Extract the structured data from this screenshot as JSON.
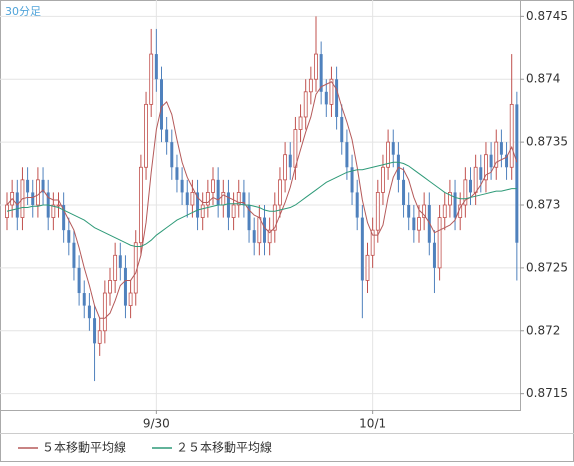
{
  "chart_data": {
    "type": "candlestick",
    "title": "30分足",
    "categories": [
      null,
      null,
      null,
      null,
      null,
      null,
      null,
      null,
      null,
      null,
      null,
      null,
      null,
      null,
      null,
      null,
      null,
      null,
      null,
      null,
      null,
      null,
      null,
      null,
      null,
      null,
      null,
      null,
      null,
      "9/30",
      null,
      null,
      null,
      null,
      null,
      null,
      null,
      null,
      null,
      null,
      null,
      null,
      null,
      null,
      null,
      null,
      null,
      null,
      null,
      null,
      null,
      null,
      null,
      null,
      null,
      null,
      null,
      null,
      null,
      null,
      null,
      null,
      null,
      null,
      null,
      null,
      null,
      null,
      null,
      null,
      null,
      "10/1",
      null,
      null,
      null,
      null,
      null,
      null,
      null,
      null,
      null,
      null,
      null,
      null,
      null,
      null,
      null,
      null,
      null,
      null,
      null,
      null,
      null,
      null,
      null,
      null,
      null,
      null,
      null,
      null
    ],
    "candles": {
      "open": [
        0.8729,
        0.873,
        0.8731,
        0.8729,
        0.8732,
        0.8731,
        0.873,
        0.8732,
        0.8731,
        0.8729,
        0.873,
        0.873,
        0.8728,
        0.8727,
        0.8725,
        0.8723,
        0.8722,
        0.8721,
        0.8719,
        0.872,
        0.8723,
        0.8724,
        0.8726,
        0.8725,
        0.8722,
        0.8723,
        0.8727,
        0.8733,
        0.8738,
        0.8742,
        0.874,
        0.8736,
        0.8735,
        0.8733,
        0.8732,
        0.8731,
        0.873,
        0.8731,
        0.8729,
        0.873,
        0.8731,
        0.8732,
        0.873,
        0.8731,
        0.8729,
        0.873,
        0.8731,
        0.873,
        0.8728,
        0.8727,
        0.8729,
        0.8727,
        0.8728,
        0.873,
        0.8732,
        0.8734,
        0.8733,
        0.8736,
        0.8737,
        0.8739,
        0.874,
        0.8742,
        0.8739,
        0.8738,
        0.874,
        0.8737,
        0.8735,
        0.8733,
        0.8731,
        0.8729,
        0.8724,
        0.8726,
        0.8728,
        0.8731,
        0.8733,
        0.8735,
        0.8734,
        0.8732,
        0.873,
        0.8729,
        0.8728,
        0.8729,
        0.873,
        0.8727,
        0.8725,
        0.8729,
        0.873,
        0.8731,
        0.8729,
        0.873,
        0.8732,
        0.8731,
        0.8733,
        0.8732,
        0.8734,
        0.8733,
        0.8735,
        0.8734,
        0.8733,
        0.8738
      ],
      "high": [
        0.8731,
        0.8732,
        0.8732,
        0.8733,
        0.8733,
        0.8732,
        0.8733,
        0.8733,
        0.8732,
        0.8731,
        0.8731,
        0.8731,
        0.8729,
        0.8728,
        0.8726,
        0.8724,
        0.8723,
        0.8722,
        0.8721,
        0.8724,
        0.8725,
        0.8727,
        0.8727,
        0.8726,
        0.8724,
        0.8728,
        0.8734,
        0.8739,
        0.8744,
        0.8744,
        0.8741,
        0.8737,
        0.8736,
        0.8734,
        0.8733,
        0.8732,
        0.8732,
        0.8732,
        0.8731,
        0.8732,
        0.8733,
        0.8733,
        0.8732,
        0.8732,
        0.8731,
        0.8732,
        0.8732,
        0.8731,
        0.8729,
        0.873,
        0.873,
        0.8729,
        0.8731,
        0.8733,
        0.8735,
        0.8735,
        0.8737,
        0.8738,
        0.874,
        0.8741,
        0.8745,
        0.8743,
        0.874,
        0.8741,
        0.8741,
        0.8738,
        0.8736,
        0.8734,
        0.8732,
        0.873,
        0.8727,
        0.8729,
        0.8732,
        0.8734,
        0.8736,
        0.8736,
        0.8735,
        0.8733,
        0.8731,
        0.873,
        0.873,
        0.8731,
        0.8731,
        0.8728,
        0.873,
        0.8731,
        0.8732,
        0.8732,
        0.8731,
        0.8733,
        0.8733,
        0.8734,
        0.8734,
        0.8735,
        0.8735,
        0.8736,
        0.8736,
        0.8735,
        0.8742,
        0.8739
      ],
      "low": [
        0.8728,
        0.8729,
        0.8728,
        0.8728,
        0.873,
        0.8729,
        0.8729,
        0.873,
        0.8728,
        0.8728,
        0.8729,
        0.8727,
        0.8726,
        0.8724,
        0.8722,
        0.8721,
        0.872,
        0.8716,
        0.8718,
        0.8719,
        0.8722,
        0.8723,
        0.8724,
        0.8721,
        0.8721,
        0.8722,
        0.8726,
        0.8732,
        0.8737,
        0.8739,
        0.8735,
        0.8734,
        0.8732,
        0.8731,
        0.873,
        0.8729,
        0.8729,
        0.8728,
        0.8728,
        0.8729,
        0.873,
        0.8729,
        0.8729,
        0.8728,
        0.8728,
        0.8729,
        0.8729,
        0.8727,
        0.8726,
        0.8726,
        0.8726,
        0.8726,
        0.8727,
        0.8729,
        0.8731,
        0.8732,
        0.8732,
        0.8735,
        0.8736,
        0.8738,
        0.8739,
        0.8738,
        0.8737,
        0.8737,
        0.8736,
        0.8734,
        0.8732,
        0.873,
        0.8728,
        0.8721,
        0.8723,
        0.8725,
        0.8727,
        0.873,
        0.8732,
        0.8733,
        0.8731,
        0.8729,
        0.8728,
        0.8727,
        0.8727,
        0.8728,
        0.8726,
        0.8723,
        0.8724,
        0.8728,
        0.8729,
        0.8728,
        0.8728,
        0.8729,
        0.873,
        0.873,
        0.8731,
        0.8731,
        0.8732,
        0.8732,
        0.8733,
        0.8732,
        0.8732,
        0.8724
      ],
      "close": [
        0.873,
        0.8731,
        0.8729,
        0.8732,
        0.8731,
        0.873,
        0.8732,
        0.8731,
        0.8729,
        0.873,
        0.873,
        0.8728,
        0.8727,
        0.8725,
        0.8723,
        0.8722,
        0.8721,
        0.8719,
        0.872,
        0.8723,
        0.8724,
        0.8726,
        0.8725,
        0.8722,
        0.8723,
        0.8727,
        0.8733,
        0.8738,
        0.8742,
        0.874,
        0.8736,
        0.8735,
        0.8733,
        0.8732,
        0.8731,
        0.873,
        0.8731,
        0.8729,
        0.873,
        0.8731,
        0.8732,
        0.873,
        0.8731,
        0.8729,
        0.873,
        0.8731,
        0.873,
        0.8728,
        0.8727,
        0.8729,
        0.8727,
        0.8728,
        0.873,
        0.8732,
        0.8734,
        0.8733,
        0.8736,
        0.8737,
        0.8739,
        0.874,
        0.8742,
        0.8739,
        0.8738,
        0.874,
        0.8737,
        0.8735,
        0.8733,
        0.8731,
        0.8729,
        0.8724,
        0.8726,
        0.8728,
        0.8731,
        0.8733,
        0.8735,
        0.8734,
        0.8732,
        0.873,
        0.8729,
        0.8728,
        0.8729,
        0.873,
        0.8727,
        0.8725,
        0.8729,
        0.873,
        0.8731,
        0.8729,
        0.873,
        0.8732,
        0.8731,
        0.8733,
        0.8732,
        0.8734,
        0.8733,
        0.8735,
        0.8734,
        0.8733,
        0.8738,
        0.8727
      ]
    },
    "up_color": "#c0504d",
    "down_color": "#4f81bd",
    "series": [
      {
        "name": "５本移動平均線",
        "color": "#b55a5a",
        "values": [
          0.873,
          0.87305,
          0.873,
          0.87305,
          0.87306,
          0.87306,
          0.87308,
          0.87312,
          0.87306,
          0.87304,
          0.87304,
          0.87296,
          0.87288,
          0.8728,
          0.87266,
          0.8725,
          0.87236,
          0.8722,
          0.8721,
          0.8721,
          0.87214,
          0.87224,
          0.87236,
          0.8724,
          0.8724,
          0.87246,
          0.8726,
          0.87286,
          0.87326,
          0.8736,
          0.87378,
          0.87382,
          0.87372,
          0.87352,
          0.87334,
          0.87322,
          0.87314,
          0.87306,
          0.87302,
          0.87302,
          0.87306,
          0.87304,
          0.87308,
          0.87306,
          0.87304,
          0.87302,
          0.87302,
          0.87296,
          0.87292,
          0.8729,
          0.87282,
          0.87278,
          0.87282,
          0.87292,
          0.87302,
          0.87314,
          0.8733,
          0.87344,
          0.87358,
          0.8737,
          0.87388,
          0.87394,
          0.87396,
          0.87398,
          0.87392,
          0.87378,
          0.87366,
          0.87352,
          0.8733,
          0.87304,
          0.87286,
          0.87276,
          0.87276,
          0.87284,
          0.87306,
          0.87322,
          0.8733,
          0.87328,
          0.8732,
          0.87306,
          0.87296,
          0.87292,
          0.87286,
          0.87278,
          0.8728,
          0.87282,
          0.87284,
          0.87288,
          0.87298,
          0.87304,
          0.87306,
          0.8731,
          0.87316,
          0.87324,
          0.87326,
          0.87334,
          0.87336,
          0.87338,
          0.87346,
          0.87334
        ]
      },
      {
        "name": "２５本移動平均線",
        "color": "#2e9a78",
        "values": [
          0.87295,
          0.87296,
          0.87297,
          0.87298,
          0.87298,
          0.87299,
          0.87299,
          0.873,
          0.873,
          0.87299,
          0.87298,
          0.87296,
          0.87294,
          0.87292,
          0.8729,
          0.87288,
          0.87285,
          0.87282,
          0.8728,
          0.87278,
          0.87276,
          0.87274,
          0.87272,
          0.8727,
          0.87268,
          0.87267,
          0.87267,
          0.87269,
          0.87272,
          0.87276,
          0.87279,
          0.87282,
          0.87285,
          0.87288,
          0.8729,
          0.87292,
          0.87294,
          0.87296,
          0.87297,
          0.87298,
          0.87299,
          0.873,
          0.873,
          0.87301,
          0.87301,
          0.87301,
          0.873,
          0.873,
          0.87299,
          0.87298,
          0.87296,
          0.87295,
          0.87295,
          0.87296,
          0.87297,
          0.87298,
          0.873,
          0.87303,
          0.87306,
          0.87309,
          0.87312,
          0.87315,
          0.87318,
          0.8732,
          0.87322,
          0.87324,
          0.87326,
          0.87327,
          0.87328,
          0.87328,
          0.87329,
          0.8733,
          0.87331,
          0.87332,
          0.87333,
          0.87334,
          0.87334,
          0.87333,
          0.87331,
          0.87328,
          0.87325,
          0.87322,
          0.87319,
          0.87316,
          0.87313,
          0.8731,
          0.87308,
          0.87306,
          0.87305,
          0.87305,
          0.87306,
          0.87307,
          0.87308,
          0.87309,
          0.8731,
          0.87311,
          0.87311,
          0.87312,
          0.87313,
          0.87313
        ]
      }
    ],
    "ylim": [
      0.87137,
      0.87463
    ],
    "yticks": [
      0.8715,
      0.872,
      0.8725,
      0.873,
      0.8735,
      0.874,
      0.8745
    ],
    "grid": true
  }
}
